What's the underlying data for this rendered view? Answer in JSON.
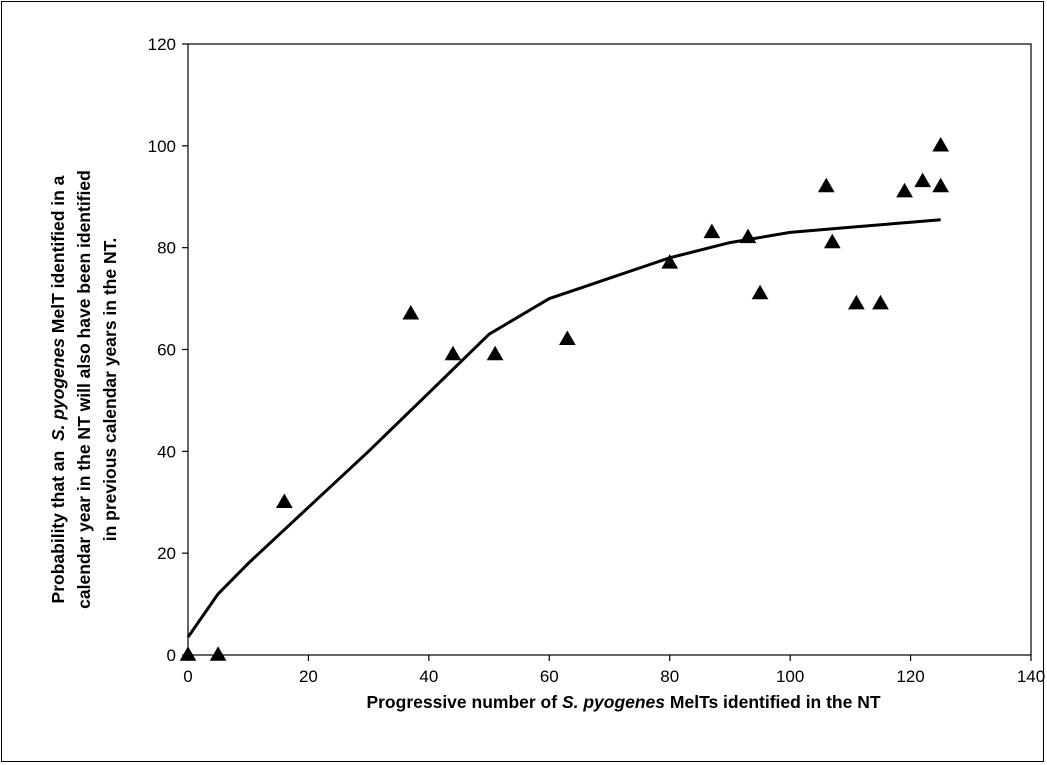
{
  "chart_data": {
    "type": "scatter",
    "xlabel_parts": [
      {
        "text": "Progressive number of ",
        "italic": false
      },
      {
        "text": "S. pyogenes",
        "italic": true
      },
      {
        "text": " MelTs identified in the NT",
        "italic": false
      }
    ],
    "ylabel_lines": [
      [
        {
          "text": "Probability that an  ",
          "italic": false
        },
        {
          "text": "S. pyogenes",
          "italic": true
        },
        {
          "text": " MelT identified in a",
          "italic": false
        }
      ],
      [
        {
          "text": "calendar year in the NT will also have been identified",
          "italic": false
        }
      ],
      [
        {
          "text": "in previous calendar years in the NT.",
          "italic": false
        }
      ]
    ],
    "xlim": [
      0,
      140
    ],
    "ylim": [
      0,
      120
    ],
    "xticks": [
      0,
      20,
      40,
      60,
      80,
      100,
      120,
      140
    ],
    "yticks": [
      0,
      20,
      40,
      60,
      80,
      100,
      120
    ],
    "grid": false,
    "legend": "none",
    "marker_color": "#000000",
    "series": [
      {
        "marker": "triangle",
        "x": [
          0,
          5,
          16,
          37,
          44,
          51,
          63,
          80,
          87,
          93,
          95,
          106,
          107,
          111,
          115,
          119,
          122,
          125,
          125
        ],
        "y": [
          0,
          0,
          30,
          67,
          59,
          59,
          62,
          77,
          83,
          82,
          71,
          92,
          81,
          69,
          69,
          91,
          93,
          100,
          92
        ]
      },
      {
        "type": "line",
        "x": [
          0,
          5,
          10,
          20,
          30,
          40,
          50,
          60,
          65,
          70,
          80,
          90,
          100,
          110,
          120,
          125
        ],
        "y": [
          3.5,
          12,
          18,
          29,
          40,
          51.5,
          63,
          70,
          72,
          74,
          78,
          81,
          83,
          84,
          85,
          85.5
        ]
      }
    ]
  }
}
